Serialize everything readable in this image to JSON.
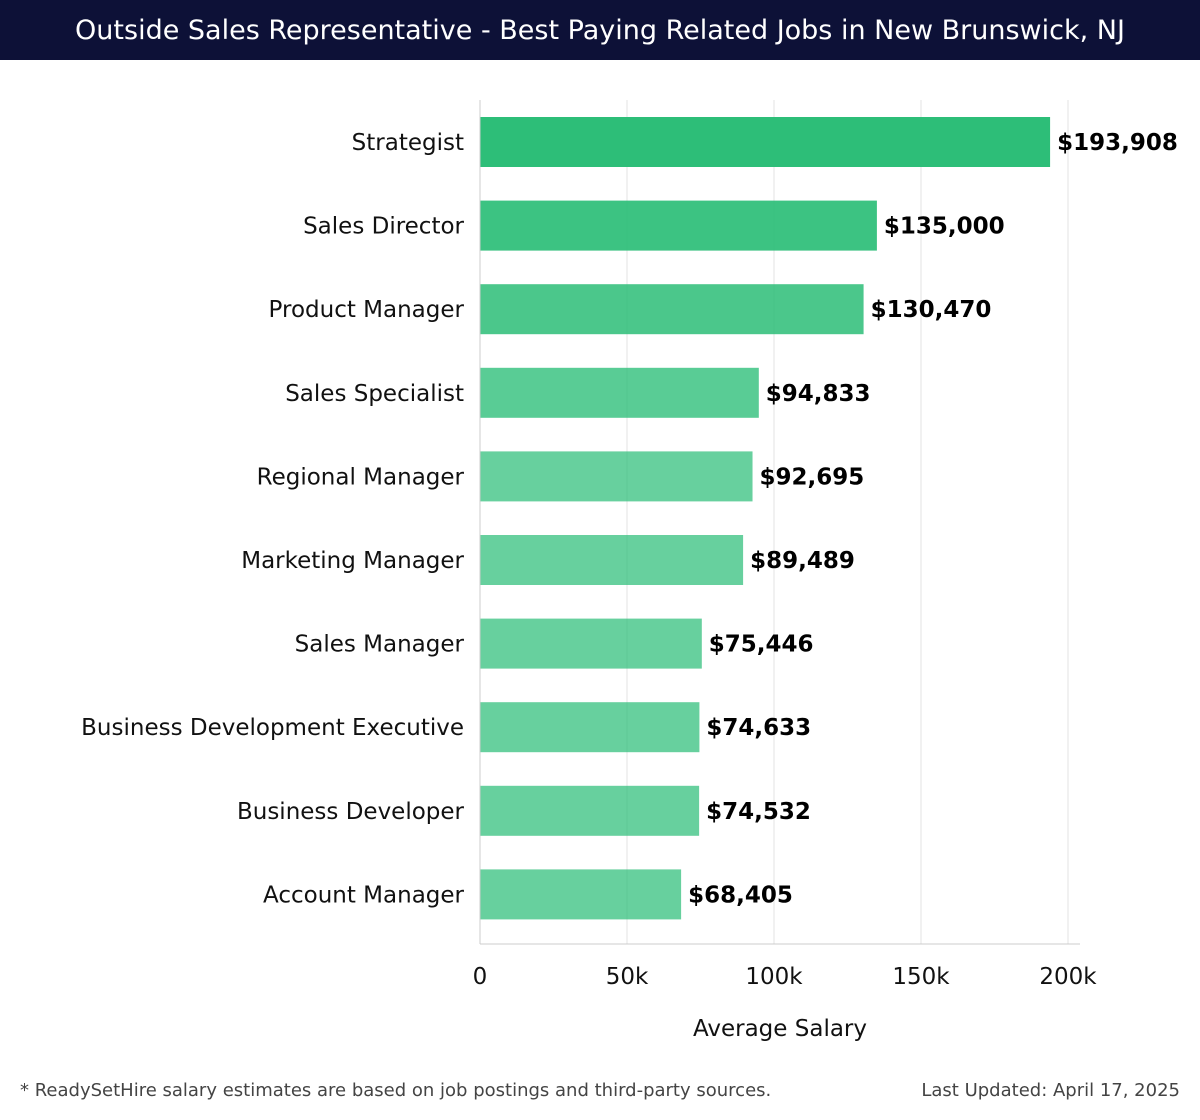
{
  "header": {
    "title": "Outside Sales Representative - Best Paying Related Jobs in New Brunswick, NJ"
  },
  "footer": {
    "note": "* ReadySetHire salary estimates are based on job postings and third-party sources.",
    "updated": "Last Updated: April 17, 2025"
  },
  "chart_data": {
    "type": "bar",
    "orientation": "horizontal",
    "title": "Outside Sales Representative - Best Paying Related Jobs in New Brunswick, NJ",
    "xlabel": "Average Salary",
    "ylabel": "",
    "xlim": [
      0,
      200000
    ],
    "xticks": [
      0,
      50000,
      100000,
      150000,
      200000
    ],
    "xtick_labels": [
      "0",
      "50k",
      "100k",
      "150k",
      "200k"
    ],
    "grid": "vertical",
    "bar_color": "#2dbe78",
    "categories": [
      "Strategist",
      "Sales Director",
      "Product Manager",
      "Sales Specialist",
      "Regional Manager",
      "Marketing Manager",
      "Sales Manager",
      "Business Development Executive",
      "Business Developer",
      "Account Manager"
    ],
    "values": [
      193908,
      135000,
      130470,
      94833,
      92695,
      89489,
      75446,
      74633,
      74532,
      68405
    ],
    "value_labels": [
      "$193,908",
      "$135,000",
      "$130,470",
      "$94,833",
      "$92,695",
      "$89,489",
      "$75,446",
      "$74,633",
      "$74,532",
      "$68,405"
    ]
  }
}
